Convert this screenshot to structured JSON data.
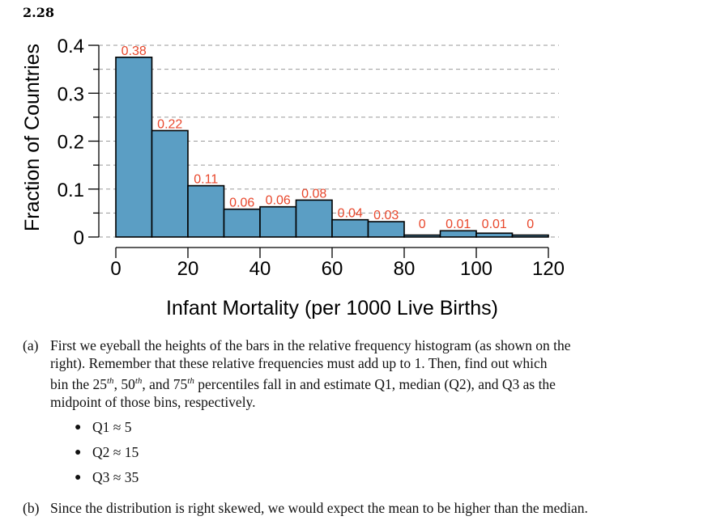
{
  "problem_number": "2.28",
  "chart_data": {
    "type": "bar",
    "histogram": true,
    "bin_edges": [
      0,
      10,
      20,
      30,
      40,
      50,
      60,
      70,
      80,
      90,
      100,
      110,
      120
    ],
    "values": [
      0.375,
      0.222,
      0.107,
      0.058,
      0.063,
      0.077,
      0.036,
      0.032,
      0.004,
      0.013,
      0.008,
      0.004
    ],
    "data_labels": [
      "0.38",
      "0.22",
      "0.11",
      "0.06",
      "0.06",
      "0.08",
      "0.04",
      "0.03",
      "0",
      "0.01",
      "0.01",
      "0"
    ],
    "xlabel": "Infant Mortality (per 1000 Live Births)",
    "ylabel": "Fraction of Countries",
    "xlim": [
      0,
      120
    ],
    "ylim": [
      0,
      0.4
    ],
    "x_ticks": [
      0,
      20,
      40,
      60,
      80,
      100,
      120
    ],
    "x_tick_labels": [
      "0",
      "20",
      "40",
      "60",
      "80",
      "100",
      "120"
    ],
    "y_ticks": [
      0,
      0.1,
      0.2,
      0.3,
      0.4
    ],
    "y_tick_labels": [
      "0",
      "0.1",
      "0.2",
      "0.3",
      "0.4"
    ],
    "y_minor_ticks": [
      0.05,
      0.15,
      0.25,
      0.35
    ],
    "grid": true,
    "bar_color": "#5b9ec4",
    "label_color": "#e8472c"
  },
  "text": {
    "part_a": {
      "marker": "(a)",
      "line1": "First we eyeball the heights of the bars in the relative frequency histogram (as shown on the",
      "line2": "right). Remember that these relative frequencies must add up to 1. Then, find out which",
      "line3_pre": "bin the 25",
      "sup1": "th",
      "line3_mid1": ", 50",
      "sup2": "th",
      "line3_mid2": ", and 75",
      "sup3": "th",
      "line3_post": " percentiles fall in and estimate Q1, median (Q2), and Q3 as the",
      "line4": "midpoint of those bins, respectively."
    },
    "bullets": [
      "Q1 ≈ 5",
      "Q2 ≈ 15",
      "Q3 ≈ 35"
    ],
    "part_b": {
      "marker": "(b)",
      "line": "Since the distribution is right skewed, we would expect the mean to be higher than the median."
    }
  }
}
